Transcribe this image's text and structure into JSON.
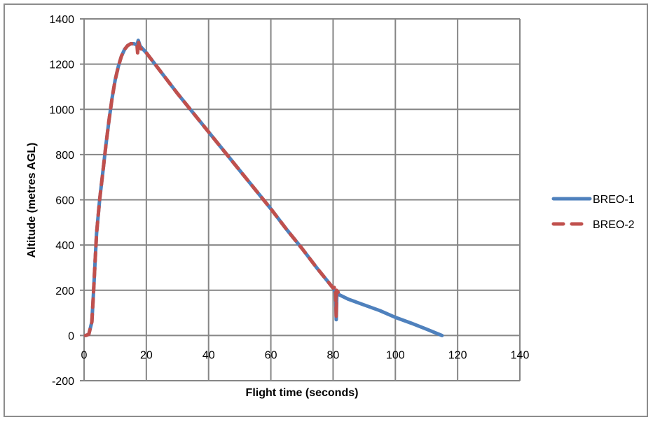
{
  "chart_data": {
    "type": "line",
    "title": "",
    "xlabel": "Flight time  (seconds)",
    "ylabel": "Altitude  (metres AGL)",
    "xlim": [
      0,
      140
    ],
    "ylim": [
      -200,
      1400
    ],
    "x_ticks": [
      0,
      20,
      40,
      60,
      80,
      100,
      120,
      140
    ],
    "y_ticks": [
      -200,
      0,
      200,
      400,
      600,
      800,
      1000,
      1200,
      1400
    ],
    "x_tick_labels": [
      "0",
      "20",
      "40",
      "60",
      "80",
      "100",
      "120",
      "140"
    ],
    "y_tick_labels": [
      "-200",
      "0",
      "200",
      "400",
      "600",
      "800",
      "1000",
      "1200",
      "1400"
    ],
    "grid": true,
    "legend_position": "right",
    "series": [
      {
        "name": "BREO-1",
        "color": "#4f81bd",
        "style": "solid",
        "points": [
          [
            0.5,
            0
          ],
          [
            1.5,
            5
          ],
          [
            2.5,
            60
          ],
          [
            3,
            180
          ],
          [
            3.5,
            320
          ],
          [
            4,
            450
          ],
          [
            5,
            600
          ],
          [
            6,
            720
          ],
          [
            7,
            840
          ],
          [
            8,
            950
          ],
          [
            9,
            1050
          ],
          [
            10,
            1130
          ],
          [
            11,
            1190
          ],
          [
            12,
            1235
          ],
          [
            13,
            1265
          ],
          [
            14,
            1282
          ],
          [
            15,
            1290
          ],
          [
            16,
            1290
          ],
          [
            17,
            1285
          ],
          [
            17.4,
            1305
          ],
          [
            18,
            1280
          ],
          [
            20,
            1250
          ],
          [
            25,
            1160
          ],
          [
            30,
            1070
          ],
          [
            35,
            985
          ],
          [
            40,
            900
          ],
          [
            45,
            815
          ],
          [
            50,
            730
          ],
          [
            55,
            645
          ],
          [
            60,
            560
          ],
          [
            65,
            470
          ],
          [
            70,
            385
          ],
          [
            75,
            295
          ],
          [
            80,
            210
          ],
          [
            80.8,
            190
          ],
          [
            81,
            70
          ],
          [
            81.2,
            190
          ],
          [
            82,
            180
          ],
          [
            85,
            160
          ],
          [
            90,
            135
          ],
          [
            95,
            110
          ],
          [
            100,
            80
          ],
          [
            105,
            55
          ],
          [
            110,
            28
          ],
          [
            115,
            0
          ]
        ]
      },
      {
        "name": "BREO-2",
        "color": "#c0504d",
        "style": "dashed",
        "points": [
          [
            0.5,
            0
          ],
          [
            1.5,
            5
          ],
          [
            2.5,
            60
          ],
          [
            3,
            180
          ],
          [
            3.5,
            320
          ],
          [
            4,
            450
          ],
          [
            5,
            600
          ],
          [
            6,
            720
          ],
          [
            7,
            840
          ],
          [
            8,
            950
          ],
          [
            9,
            1050
          ],
          [
            10,
            1130
          ],
          [
            11,
            1190
          ],
          [
            12,
            1235
          ],
          [
            13,
            1265
          ],
          [
            14,
            1282
          ],
          [
            15,
            1290
          ],
          [
            16,
            1290
          ],
          [
            17,
            1285
          ],
          [
            17.2,
            1250
          ],
          [
            17.5,
            1295
          ],
          [
            18,
            1270
          ],
          [
            20,
            1250
          ],
          [
            25,
            1160
          ],
          [
            30,
            1070
          ],
          [
            35,
            985
          ],
          [
            40,
            900
          ],
          [
            45,
            815
          ],
          [
            50,
            730
          ],
          [
            55,
            645
          ],
          [
            60,
            560
          ],
          [
            65,
            470
          ],
          [
            70,
            385
          ],
          [
            75,
            295
          ],
          [
            80,
            210
          ],
          [
            80.8,
            215
          ],
          [
            81,
            80
          ],
          [
            81.1,
            200
          ],
          [
            82,
            185
          ]
        ]
      }
    ]
  },
  "legend": {
    "items": [
      {
        "label": "BREO-1",
        "color": "#4f81bd"
      },
      {
        "label": "BREO-2",
        "color": "#c0504d"
      }
    ]
  },
  "axes": {
    "x_title": "Flight time  (seconds)",
    "y_title": "Altitude  (metres AGL)"
  }
}
